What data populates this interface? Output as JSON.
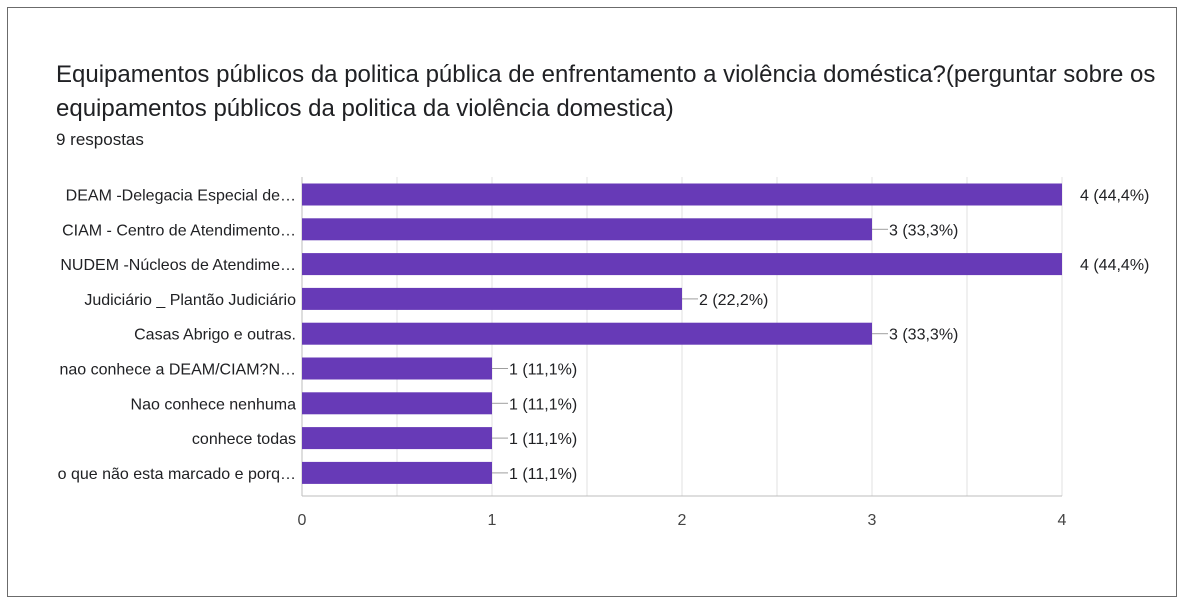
{
  "title": " Equipamentos públicos da politica pública de enfrentamento a violência doméstica?(perguntar sobre os equipamentos públicos da politica da violência domestica)",
  "response_count": "9 respostas",
  "colors": {
    "bar": "#673ab7",
    "grid": "#e0e0e0",
    "axis": "#bdbdbd"
  },
  "chart_data": {
    "type": "bar",
    "orientation": "horizontal",
    "categories": [
      "DEAM -Delegacia Especial de…",
      "CIAM - Centro de Atendimento…",
      "NUDEM -Núcleos de Atendime…",
      "Judiciário _ Plantão Judiciário",
      "Casas Abrigo e outras.",
      "nao conhece a DEAM/CIAM?N…",
      "Nao conhece nenhuma",
      "conhece todas",
      "o que não esta marcado e porq…"
    ],
    "values": [
      4,
      3,
      4,
      2,
      3,
      1,
      1,
      1,
      1
    ],
    "value_labels": [
      "4 (44,4%)",
      "3 (33,3%)",
      "4 (44,4%)",
      "2 (22,2%)",
      "3 (33,3%)",
      "1 (11,1%)",
      "1 (11,1%)",
      "1 (11,1%)",
      "1 (11,1%)"
    ],
    "xlim": [
      0,
      4
    ],
    "xticks": [
      "0",
      "1",
      "2",
      "3",
      "4"
    ],
    "grid": true
  }
}
